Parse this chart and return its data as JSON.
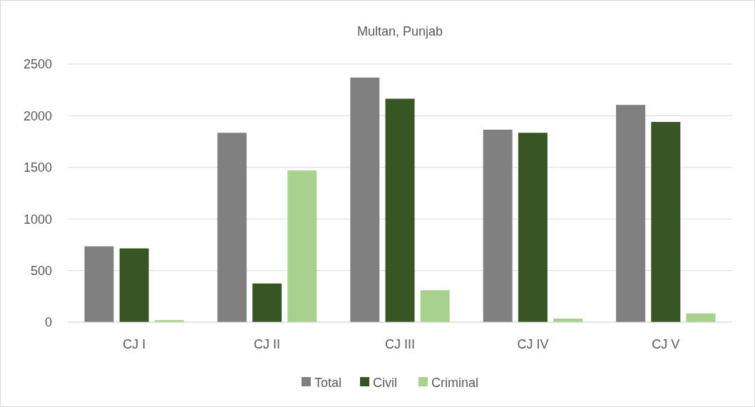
{
  "chart_data": {
    "type": "bar",
    "title": "Multan, Punjab",
    "categories": [
      "CJ I",
      "CJ II",
      "CJ III",
      "CJ IV",
      "CJ V"
    ],
    "series": [
      {
        "name": "Total",
        "color": "#808080",
        "values": [
          735,
          1835,
          2370,
          1865,
          2105
        ]
      },
      {
        "name": "Civil",
        "color": "#375623",
        "values": [
          715,
          375,
          2165,
          1835,
          1940
        ]
      },
      {
        "name": "Criminal",
        "color": "#a9d18e",
        "values": [
          20,
          1470,
          310,
          35,
          85
        ]
      }
    ],
    "ylim": [
      0,
      2500
    ],
    "yticks": [
      0,
      500,
      1000,
      1500,
      2000,
      2500
    ],
    "grid": "y",
    "legend": "bottom"
  }
}
